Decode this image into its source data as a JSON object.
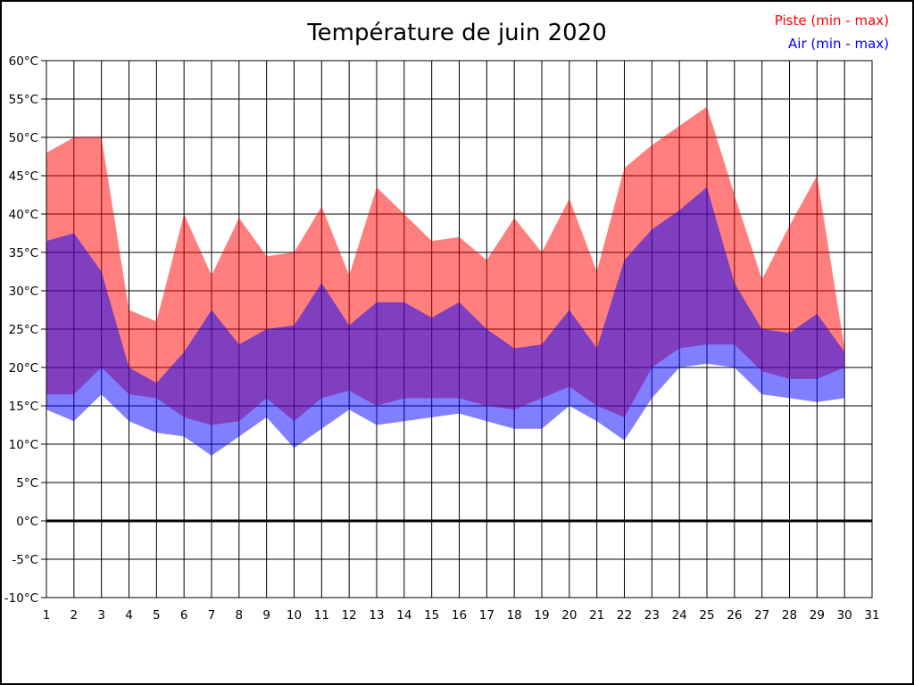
{
  "title": "Température de juin 2020",
  "legend": {
    "piste": {
      "label": "Piste (min - max)",
      "color": "#ff0000"
    },
    "air": {
      "label": "Air (min - max)",
      "color": "#0000ff"
    }
  },
  "chart_data": {
    "type": "area",
    "title": "Température de juin 2020",
    "xlabel": "",
    "ylabel": "",
    "ylim": [
      -10,
      60
    ],
    "ytick_step": 5,
    "grid": true,
    "zero_line_at": 0,
    "x_tick_labels": [
      "1",
      "2",
      "3",
      "4",
      "5",
      "6",
      "7",
      "8",
      "9",
      "10",
      "11",
      "12",
      "13",
      "14",
      "15",
      "16",
      "17",
      "18",
      "19",
      "20",
      "21",
      "22",
      "23",
      "24",
      "25",
      "26",
      "27",
      "28",
      "29",
      "30",
      "31"
    ],
    "y_tick_labels": [
      "60°C",
      "55°C",
      "50°C",
      "45°C",
      "40°C",
      "35°C",
      "30°C",
      "25°C",
      "20°C",
      "15°C",
      "10°C",
      "5°C",
      "0°C",
      "-5°C",
      "-10°C"
    ],
    "days": [
      1,
      2,
      3,
      4,
      5,
      6,
      7,
      8,
      9,
      10,
      11,
      12,
      13,
      14,
      15,
      16,
      17,
      18,
      19,
      20,
      21,
      22,
      23,
      24,
      25,
      26,
      27,
      28,
      29,
      30
    ],
    "series": [
      {
        "name": "Piste max",
        "band": "piste",
        "values": [
          48,
          50,
          50,
          27.5,
          26,
          40,
          32,
          39.5,
          34.5,
          35,
          41,
          32,
          43.5,
          40,
          36.5,
          37,
          34,
          39.5,
          35,
          42,
          32.5,
          46,
          49,
          51.5,
          54,
          42.5,
          31.5,
          38.5,
          45,
          22.5
        ]
      },
      {
        "name": "Piste min",
        "band": "piste",
        "values": [
          16.5,
          16.5,
          20,
          16.5,
          16,
          13.5,
          12.5,
          13,
          16,
          13,
          16,
          17,
          15,
          16,
          16,
          16,
          15,
          14.5,
          16,
          17.5,
          15,
          13.5,
          20,
          22.5,
          23,
          23,
          19.5,
          18.5,
          18.5,
          20
        ]
      },
      {
        "name": "Air max",
        "band": "air",
        "values": [
          36.5,
          37.5,
          32.5,
          20,
          18,
          22,
          27.5,
          23,
          25,
          25.5,
          31,
          25.5,
          28.5,
          28.5,
          26.5,
          28.5,
          25,
          22.5,
          23,
          27.5,
          22.5,
          34,
          38,
          40.5,
          43.5,
          31,
          25,
          24.5,
          27,
          22
        ]
      },
      {
        "name": "Air min",
        "band": "air",
        "values": [
          14.5,
          13,
          16.5,
          13,
          11.5,
          11,
          8.5,
          11,
          13.5,
          9.5,
          12,
          14.5,
          12.5,
          13,
          13.5,
          14,
          13,
          12,
          12,
          15,
          13,
          10.5,
          16,
          20,
          20.5,
          20,
          16.5,
          16,
          15.5,
          16
        ]
      }
    ],
    "band_fill_piste": "rgba(255,0,0,0.5)",
    "band_fill_air": "rgba(0,0,255,0.5)",
    "legend_position": "top-right"
  }
}
